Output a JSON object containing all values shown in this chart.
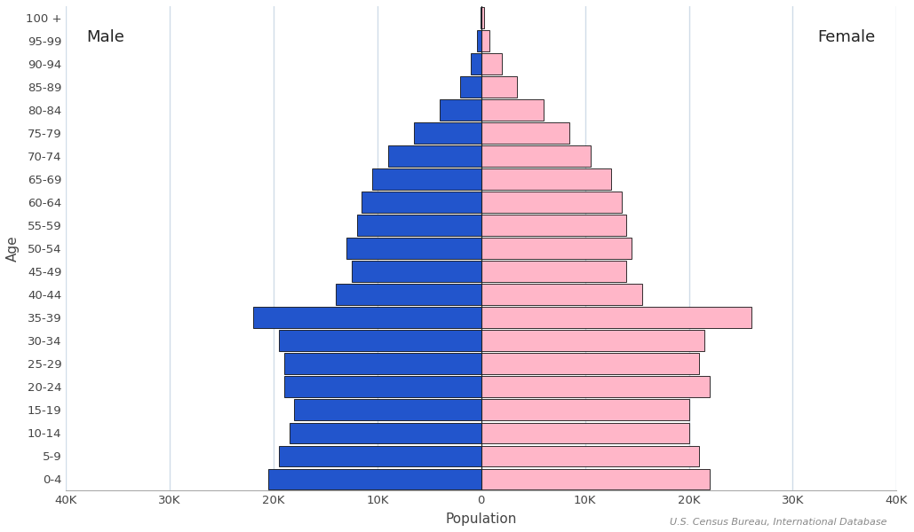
{
  "age_groups": [
    "0-4",
    "5-9",
    "10-14",
    "15-19",
    "20-24",
    "25-29",
    "30-34",
    "35-39",
    "40-44",
    "45-49",
    "50-54",
    "55-59",
    "60-64",
    "65-69",
    "70-74",
    "75-79",
    "80-84",
    "85-89",
    "90-94",
    "95-99",
    "100 +"
  ],
  "male": [
    20500,
    19500,
    18500,
    18000,
    19000,
    19000,
    19500,
    22000,
    14000,
    12500,
    13000,
    12000,
    11500,
    10500,
    9000,
    6500,
    4000,
    2000,
    1000,
    400,
    100
  ],
  "female": [
    22000,
    21000,
    20000,
    20000,
    22000,
    21000,
    21500,
    26000,
    15500,
    14000,
    14500,
    14000,
    13500,
    12500,
    10500,
    8500,
    6000,
    3400,
    2000,
    800,
    250
  ],
  "male_color": "#2255CC",
  "female_color": "#FFB6C8",
  "edge_color": "#111111",
  "bar_height": 0.9,
  "xlim": [
    -40000,
    40000
  ],
  "xlabel": "Population",
  "ylabel": "Age",
  "male_label": "Male",
  "female_label": "Female",
  "x_ticks": [
    -40000,
    -30000,
    -20000,
    -10000,
    0,
    10000,
    20000,
    30000,
    40000
  ],
  "x_tick_labels": [
    "40K",
    "30K",
    "20K",
    "10K",
    "0",
    "10K",
    "20K",
    "30K",
    "40K"
  ],
  "background_color": "#ffffff",
  "grid_color": "#d0dce8",
  "source_text": "U.S. Census Bureau, International Database"
}
